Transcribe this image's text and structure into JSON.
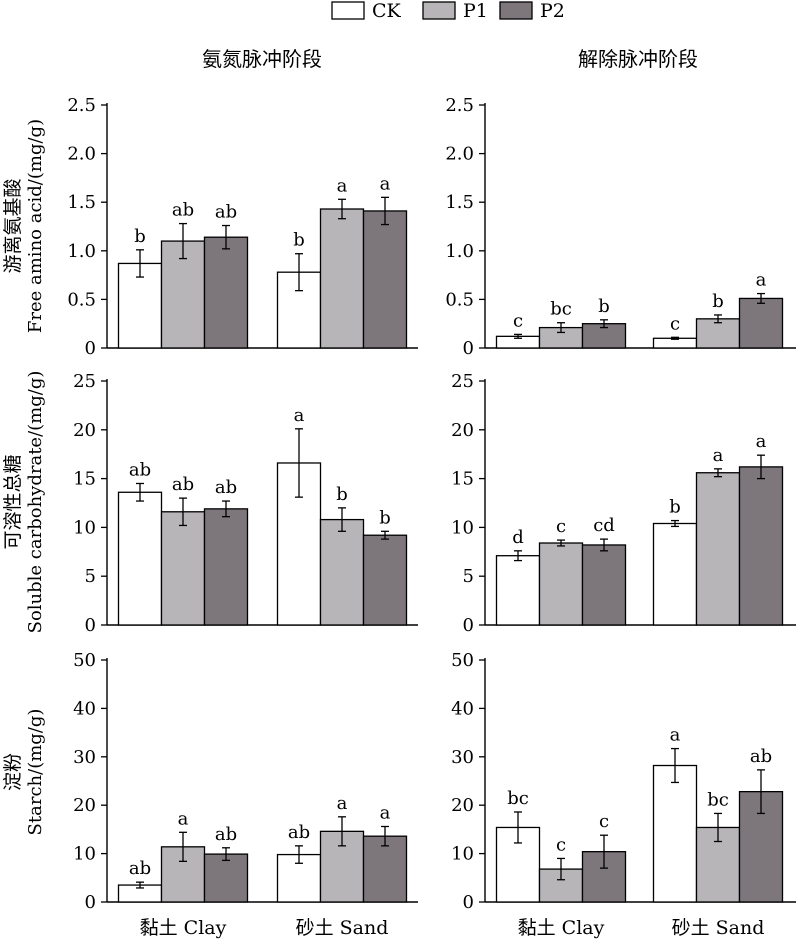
{
  "colors": {
    "CK": "#ffffff",
    "P1": "#b8b5b9",
    "P2": "#7d777c"
  },
  "legend": {
    "position": "top-center",
    "items": [
      "CK",
      "P1",
      "P2"
    ]
  },
  "columns": [
    "氨氮脉冲阶段",
    "解除脉冲阶段"
  ],
  "rows": [
    {
      "ylabel_cn": "游离氨基酸",
      "ylabel_en": "Free amino acid/(mg/g)",
      "ylim": [
        0,
        2.5
      ],
      "ticks": [
        "0",
        "0.5",
        "1.0",
        "1.5",
        "2.0",
        "2.5"
      ]
    },
    {
      "ylabel_cn": "可溶性总糖",
      "ylabel_en": "Soluble carbohydrate/(mg/g)",
      "ylim": [
        0,
        25
      ],
      "ticks": [
        "0",
        "5",
        "10",
        "15",
        "20",
        "25"
      ]
    },
    {
      "ylabel_cn": "淀粉",
      "ylabel_en": "Starch/(mg/g)",
      "ylim": [
        0,
        50
      ],
      "ticks": [
        "0",
        "10",
        "20",
        "30",
        "40",
        "50"
      ]
    }
  ],
  "categories": [
    "黏土 Clay",
    "砂土 Sand"
  ],
  "chart_data": [
    {
      "type": "bar",
      "row": 0,
      "col": 0,
      "categories": [
        "黏土 Clay",
        "砂土 Sand"
      ],
      "ylim": [
        0,
        2.5
      ],
      "series": [
        {
          "name": "CK",
          "values": [
            0.87,
            0.78
          ],
          "errors": [
            0.14,
            0.19
          ],
          "letters": [
            "b",
            "b"
          ]
        },
        {
          "name": "P1",
          "values": [
            1.1,
            1.43
          ],
          "errors": [
            0.18,
            0.1
          ],
          "letters": [
            "ab",
            "a"
          ]
        },
        {
          "name": "P2",
          "values": [
            1.14,
            1.41
          ],
          "errors": [
            0.12,
            0.14
          ],
          "letters": [
            "ab",
            "a"
          ]
        }
      ]
    },
    {
      "type": "bar",
      "row": 0,
      "col": 1,
      "categories": [
        "黏土 Clay",
        "砂土 Sand"
      ],
      "ylim": [
        0,
        2.5
      ],
      "series": [
        {
          "name": "CK",
          "values": [
            0.12,
            0.1
          ],
          "errors": [
            0.02,
            0.01
          ],
          "letters": [
            "c",
            "c"
          ]
        },
        {
          "name": "P1",
          "values": [
            0.21,
            0.3
          ],
          "errors": [
            0.05,
            0.04
          ],
          "letters": [
            "bc",
            "b"
          ]
        },
        {
          "name": "P2",
          "values": [
            0.25,
            0.51
          ],
          "errors": [
            0.04,
            0.05
          ],
          "letters": [
            "b",
            "a"
          ]
        }
      ]
    },
    {
      "type": "bar",
      "row": 1,
      "col": 0,
      "categories": [
        "黏土 Clay",
        "砂土 Sand"
      ],
      "ylim": [
        0,
        25
      ],
      "series": [
        {
          "name": "CK",
          "values": [
            13.6,
            16.6
          ],
          "errors": [
            0.9,
            3.5
          ],
          "letters": [
            "ab",
            "a"
          ]
        },
        {
          "name": "P1",
          "values": [
            11.6,
            10.8
          ],
          "errors": [
            1.4,
            1.2
          ],
          "letters": [
            "ab",
            "b"
          ]
        },
        {
          "name": "P2",
          "values": [
            11.9,
            9.2
          ],
          "errors": [
            0.8,
            0.4
          ],
          "letters": [
            "ab",
            "b"
          ]
        }
      ]
    },
    {
      "type": "bar",
      "row": 1,
      "col": 1,
      "categories": [
        "黏土 Clay",
        "砂土 Sand"
      ],
      "ylim": [
        0,
        25
      ],
      "series": [
        {
          "name": "CK",
          "values": [
            7.1,
            10.4
          ],
          "errors": [
            0.5,
            0.3
          ],
          "letters": [
            "d",
            "b"
          ]
        },
        {
          "name": "P1",
          "values": [
            8.4,
            15.6
          ],
          "errors": [
            0.3,
            0.4
          ],
          "letters": [
            "c",
            "a"
          ]
        },
        {
          "name": "P2",
          "values": [
            8.2,
            16.2
          ],
          "errors": [
            0.6,
            1.2
          ],
          "letters": [
            "cd",
            "a"
          ]
        }
      ]
    },
    {
      "type": "bar",
      "row": 2,
      "col": 0,
      "categories": [
        "黏土 Clay",
        "砂土 Sand"
      ],
      "ylim": [
        0,
        50
      ],
      "series": [
        {
          "name": "CK",
          "values": [
            3.5,
            9.8
          ],
          "errors": [
            0.6,
            1.8
          ],
          "letters": [
            "ab",
            "ab"
          ]
        },
        {
          "name": "P1",
          "values": [
            11.4,
            14.6
          ],
          "errors": [
            3.0,
            3.0
          ],
          "letters": [
            "a",
            "a"
          ]
        },
        {
          "name": "P2",
          "values": [
            9.9,
            13.6
          ],
          "errors": [
            1.3,
            2.0
          ],
          "letters": [
            "ab",
            "a"
          ]
        }
      ]
    },
    {
      "type": "bar",
      "row": 2,
      "col": 1,
      "categories": [
        "黏土 Clay",
        "砂土 Sand"
      ],
      "ylim": [
        0,
        50
      ],
      "series": [
        {
          "name": "CK",
          "values": [
            15.4,
            28.2
          ],
          "errors": [
            3.2,
            3.5
          ],
          "letters": [
            "bc",
            "a"
          ]
        },
        {
          "name": "P1",
          "values": [
            6.8,
            15.4
          ],
          "errors": [
            2.2,
            2.9
          ],
          "letters": [
            "c",
            "bc"
          ]
        },
        {
          "name": "P2",
          "values": [
            10.4,
            22.8
          ],
          "errors": [
            3.4,
            4.5
          ],
          "letters": [
            "c",
            "ab"
          ]
        }
      ]
    }
  ]
}
